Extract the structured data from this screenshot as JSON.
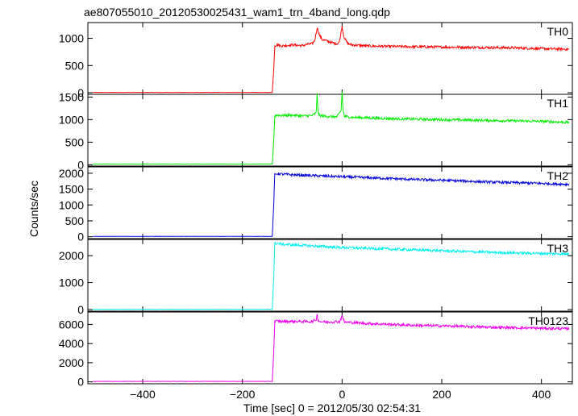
{
  "title": "ae807055010_20120530025431_wam1_trn_4band_long.qdp",
  "chart_data": {
    "type": "line",
    "title": "ae807055010_20120530025431_wam1_trn_4band_long.qdp",
    "xlabel": "Time [sec] 0 = 2012/05/30 02:54:31",
    "ylabel": "Counts/sec",
    "xlim": [
      -510,
      462
    ],
    "x_ticks": [
      -400,
      -200,
      0,
      200,
      400
    ],
    "x_tick_labels": [
      "−400",
      "−200",
      "0",
      "200",
      "400"
    ],
    "series": [
      {
        "name": "TH0",
        "color": "#ff0000",
        "ylim": [
          -30,
          1290
        ],
        "yticks": [
          0,
          500,
          1000
        ],
        "ytick_labels": [
          "0",
          "500",
          "1000"
        ],
        "x": [
          -500,
          -140,
          -137,
          -135,
          -130,
          -120,
          -100,
          -80,
          -70,
          -60,
          -55,
          -52,
          -50,
          -45,
          -40,
          -30,
          -20,
          -10,
          -5,
          -2,
          0,
          3,
          8,
          12,
          20,
          50,
          100,
          150,
          200,
          250,
          300,
          350,
          400,
          455
        ],
        "y": [
          5,
          5,
          450,
          870,
          880,
          860,
          880,
          865,
          890,
          900,
          960,
          1100,
          1200,
          1050,
          980,
          950,
          920,
          900,
          940,
          1120,
          1220,
          1050,
          950,
          900,
          880,
          860,
          850,
          845,
          840,
          835,
          830,
          825,
          810,
          800
        ]
      },
      {
        "name": "TH1",
        "color": "#00ee00",
        "ylim": [
          -30,
          1560
        ],
        "yticks": [
          0,
          500,
          1000,
          1500
        ],
        "ytick_labels": [
          "0",
          "500",
          "1000",
          "1500"
        ],
        "x": [
          -500,
          -140,
          -137,
          -135,
          -130,
          -120,
          -100,
          -80,
          -60,
          -52,
          -50,
          -48,
          -45,
          -30,
          -10,
          -2,
          0,
          2,
          5,
          20,
          50,
          100,
          150,
          200,
          250,
          300,
          350,
          400,
          455
        ],
        "y": [
          15,
          15,
          550,
          1080,
          1100,
          1090,
          1100,
          1080,
          1090,
          1150,
          1600,
          1150,
          1090,
          1070,
          1060,
          1200,
          1610,
          1200,
          1070,
          1050,
          1040,
          1020,
          1010,
          1000,
          990,
          980,
          970,
          960,
          940
        ]
      },
      {
        "name": "TH2",
        "color": "#0000dd",
        "ylim": [
          -60,
          2200
        ],
        "yticks": [
          0,
          500,
          1000,
          1500,
          2000
        ],
        "ytick_labels": [
          "0",
          "500",
          "1000",
          "1500",
          "2000"
        ],
        "x": [
          -500,
          -140,
          -137,
          -135,
          -130,
          -120,
          -100,
          -50,
          0,
          50,
          100,
          150,
          200,
          250,
          300,
          350,
          400,
          455
        ],
        "y": [
          10,
          10,
          1050,
          1950,
          1990,
          1970,
          1950,
          1920,
          1890,
          1860,
          1830,
          1800,
          1780,
          1750,
          1720,
          1700,
          1680,
          1650
        ]
      },
      {
        "name": "TH3",
        "color": "#00eeee",
        "ylim": [
          -60,
          2600
        ],
        "yticks": [
          0,
          1000,
          2000
        ],
        "ytick_labels": [
          "0",
          "1000",
          "2000"
        ],
        "x": [
          -500,
          -140,
          -137,
          -135,
          -130,
          -120,
          -100,
          -50,
          0,
          50,
          100,
          150,
          200,
          250,
          300,
          350,
          400,
          455
        ],
        "y": [
          10,
          10,
          1250,
          2450,
          2460,
          2420,
          2400,
          2350,
          2300,
          2270,
          2240,
          2210,
          2180,
          2150,
          2120,
          2100,
          2080,
          2060
        ]
      },
      {
        "name": "TH0123",
        "color": "#ee00ee",
        "ylim": [
          -200,
          7300
        ],
        "yticks": [
          0,
          2000,
          4000,
          6000
        ],
        "ytick_labels": [
          "0",
          "2000",
          "4000",
          "6000"
        ],
        "x": [
          -500,
          -140,
          -137,
          -135,
          -130,
          -120,
          -100,
          -60,
          -52,
          -50,
          -48,
          -45,
          -30,
          -5,
          -2,
          0,
          2,
          5,
          20,
          50,
          100,
          150,
          200,
          250,
          300,
          350,
          400,
          455
        ],
        "y": [
          50,
          50,
          3200,
          6300,
          6350,
          6300,
          6320,
          6300,
          6500,
          7000,
          6500,
          6300,
          6250,
          6300,
          6600,
          7050,
          6550,
          6250,
          6200,
          6100,
          6000,
          5900,
          5850,
          5780,
          5700,
          5650,
          5600,
          5550
        ]
      }
    ]
  }
}
